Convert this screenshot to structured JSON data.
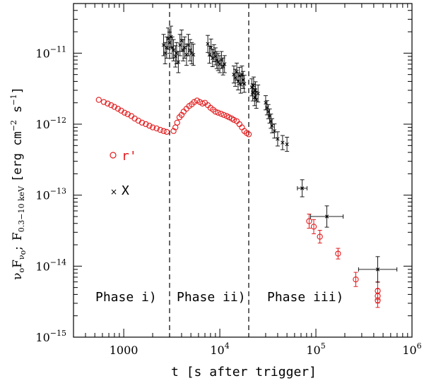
{
  "chart_data": {
    "type": "scatter",
    "xscale": "log",
    "yscale": "log",
    "xlim": [
      300,
      1000000
    ],
    "ylim": [
      1e-15,
      5e-11
    ],
    "xlabel": "t [s after trigger]",
    "ylabel_main": "ν",
    "ylabel": {
      "part1": "ν",
      "sub1": "o",
      "part2": "F",
      "sub2": "ν",
      "sub2b": "o",
      "sep": ";",
      "part3": "F",
      "sub3": "0.3−10 keV",
      "part4": "[erg cm",
      "exp1": "−2",
      "part5": " s",
      "exp2": "−1",
      "part6": "]"
    },
    "xticks": [
      {
        "base": "1000",
        "exp": ""
      },
      {
        "base": "10",
        "exp": "4"
      },
      {
        "base": "10",
        "exp": "5"
      },
      {
        "base": "10",
        "exp": "6"
      }
    ],
    "yticks": [
      {
        "base": "10",
        "exp": "−15"
      },
      {
        "base": "10",
        "exp": "−14"
      },
      {
        "base": "10",
        "exp": "−13"
      },
      {
        "base": "10",
        "exp": "−12"
      },
      {
        "base": "10",
        "exp": "−11"
      }
    ],
    "phase_boundaries": [
      3000,
      20000
    ],
    "phases": [
      "Phase i)",
      "Phase ii)",
      "Phase iii)"
    ],
    "legend": [
      {
        "name": "r'",
        "marker": "circle",
        "color": "#e31a1c"
      },
      {
        "name": "X",
        "marker": "cross",
        "color": "#000000"
      }
    ],
    "series": [
      {
        "name": "r'",
        "marker": "circle",
        "color": "#e31a1c",
        "points": [
          [
            550,
            2.2e-12
          ],
          [
            620,
            2.05e-12
          ],
          [
            680,
            1.95e-12
          ],
          [
            740,
            1.85e-12
          ],
          [
            800,
            1.75e-12
          ],
          [
            870,
            1.65e-12
          ],
          [
            940,
            1.55e-12
          ],
          [
            1020,
            1.45e-12
          ],
          [
            1100,
            1.38e-12
          ],
          [
            1200,
            1.3e-12
          ],
          [
            1300,
            1.2e-12
          ],
          [
            1420,
            1.12e-12
          ],
          [
            1550,
            1.05e-12
          ],
          [
            1700,
            1e-12
          ],
          [
            1850,
            9.5e-13
          ],
          [
            2000,
            9e-13
          ],
          [
            2200,
            8.7e-13
          ],
          [
            2400,
            8.3e-13
          ],
          [
            2600,
            8e-13
          ],
          [
            2800,
            7.8e-13
          ],
          [
            3300,
            8e-13
          ],
          [
            3450,
            9e-13
          ],
          [
            3600,
            1.05e-12
          ],
          [
            3800,
            1.25e-12
          ],
          [
            4000,
            1.35e-12
          ],
          [
            4200,
            1.5e-12
          ],
          [
            4500,
            1.65e-12
          ],
          [
            4800,
            1.8e-12
          ],
          [
            5100,
            1.9e-12
          ],
          [
            5400,
            2.05e-12
          ],
          [
            5800,
            2.15e-12
          ],
          [
            6200,
            2.05e-12
          ],
          [
            6600,
            1.95e-12
          ],
          [
            7000,
            2e-12
          ],
          [
            7500,
            1.85e-12
          ],
          [
            8000,
            1.7e-12
          ],
          [
            8500,
            1.6e-12
          ],
          [
            9000,
            1.5e-12
          ],
          [
            9600,
            1.45e-12
          ],
          [
            10300,
            1.4e-12
          ],
          [
            11000,
            1.35e-12
          ],
          [
            11800,
            1.3e-12
          ],
          [
            12500,
            1.25e-12
          ],
          [
            13300,
            1.2e-12
          ],
          [
            14000,
            1.15e-12
          ],
          [
            15000,
            1.1e-12
          ],
          [
            16000,
            1e-12
          ],
          [
            17000,
            9e-13
          ],
          [
            18000,
            8e-13
          ],
          [
            19000,
            7.5e-13
          ],
          [
            20000,
            7.2e-13
          ],
          [
            85000,
            4.3e-14
          ],
          [
            95000,
            3.6e-14
          ],
          [
            110000,
            2.6e-14
          ],
          [
            170000,
            1.5e-14
          ],
          [
            260000,
            6.5e-15
          ],
          [
            440000,
            4.5e-15
          ],
          [
            440000,
            3.8e-15
          ],
          [
            440000,
            3.3e-15
          ]
        ],
        "errors": [
          0,
          0,
          0,
          0,
          0,
          0,
          0,
          0,
          0,
          0,
          0,
          0,
          0,
          0,
          0,
          0,
          0,
          0,
          0,
          0,
          0,
          0,
          0,
          0,
          0,
          0,
          0,
          0,
          0,
          0,
          0,
          0,
          0,
          0,
          0,
          0,
          0,
          0,
          0,
          0,
          0,
          0,
          0,
          0,
          0,
          0,
          0,
          0,
          0,
          0,
          0,
          0.2,
          0.2,
          0.18,
          0.15,
          0.2,
          0.25,
          0.2,
          0.2
        ]
      },
      {
        "name": "X",
        "marker": "cross",
        "color": "#000000",
        "points": [
          [
            2600,
            1.3e-11
          ],
          [
            2700,
            1e-11
          ],
          [
            2800,
            1.2e-11
          ],
          [
            2900,
            1.6e-11
          ],
          [
            3000,
            1.4e-11
          ],
          [
            3100,
            1.7e-11
          ],
          [
            3200,
            1.2e-11
          ],
          [
            3300,
            1.1e-11
          ],
          [
            3450,
            9e-12
          ],
          [
            3550,
            1e-11
          ],
          [
            3700,
            7.5e-12
          ],
          [
            3850,
            1.3e-11
          ],
          [
            4000,
            1.5e-11
          ],
          [
            4150,
            1.1e-11
          ],
          [
            4300,
            1.2e-11
          ],
          [
            4500,
            9.5e-12
          ],
          [
            4700,
            1.3e-11
          ],
          [
            4900,
            1.1e-11
          ],
          [
            5100,
            1e-11
          ],
          [
            5300,
            9.5e-12
          ],
          [
            7500,
            1.35e-11
          ],
          [
            7800,
            9.5e-12
          ],
          [
            8100,
            1.2e-11
          ],
          [
            8400,
            8.5e-12
          ],
          [
            8700,
            1e-11
          ],
          [
            9000,
            9e-12
          ],
          [
            9300,
            8e-12
          ],
          [
            9600,
            7.5e-12
          ],
          [
            10000,
            7e-12
          ],
          [
            10400,
            8e-12
          ],
          [
            10800,
            6.5e-12
          ],
          [
            11200,
            7e-12
          ],
          [
            14000,
            5e-12
          ],
          [
            14500,
            4.5e-12
          ],
          [
            15000,
            5.5e-12
          ],
          [
            15500,
            4e-12
          ],
          [
            16000,
            4.8e-12
          ],
          [
            16500,
            3.6e-12
          ],
          [
            17000,
            5e-12
          ],
          [
            17500,
            4.2e-12
          ],
          [
            18000,
            3.7e-12
          ],
          [
            21500,
            3.3e-12
          ],
          [
            22000,
            2.8e-12
          ],
          [
            22500,
            3.5e-12
          ],
          [
            23000,
            2.4e-12
          ],
          [
            23500,
            3e-12
          ],
          [
            24000,
            2.2e-12
          ],
          [
            25000,
            2.7e-12
          ],
          [
            30000,
            2e-12
          ],
          [
            31000,
            1.7e-12
          ],
          [
            32000,
            1.5e-12
          ],
          [
            33000,
            1.3e-12
          ],
          [
            34000,
            1.1e-12
          ],
          [
            35000,
            9.5e-13
          ],
          [
            37000,
            8e-13
          ],
          [
            40000,
            6.2e-13
          ],
          [
            45000,
            5.5e-13
          ],
          [
            50000,
            5.2e-13
          ],
          [
            72000,
            1.25e-13
          ],
          [
            130000,
            5e-14
          ],
          [
            440000,
            9e-15
          ]
        ],
        "yerrors": [
          0.15,
          0.15,
          0.15,
          0.15,
          0.15,
          0.15,
          0.15,
          0.15,
          0.15,
          0.15,
          0.15,
          0.15,
          0.15,
          0.15,
          0.15,
          0.15,
          0.15,
          0.15,
          0.15,
          0.15,
          0.12,
          0.12,
          0.12,
          0.12,
          0.12,
          0.12,
          0.12,
          0.12,
          0.12,
          0.12,
          0.12,
          0.12,
          0.12,
          0.12,
          0.12,
          0.12,
          0.12,
          0.12,
          0.12,
          0.12,
          0.12,
          0.12,
          0.12,
          0.12,
          0.12,
          0.12,
          0.12,
          0.12,
          0.1,
          0.1,
          0.1,
          0.1,
          0.1,
          0.1,
          0.1,
          0.1,
          0.1,
          0.1,
          0.12,
          0.15,
          0.18
        ],
        "xerrors": [
          0,
          0,
          0,
          0,
          0,
          0,
          0,
          0,
          0,
          0,
          0,
          0,
          0,
          0,
          0,
          0,
          0,
          0,
          0,
          0,
          0,
          0,
          0,
          0,
          0,
          0,
          0,
          0,
          0,
          0,
          0,
          0,
          0,
          0,
          0,
          0,
          0,
          0,
          0,
          0,
          0,
          0,
          0,
          0,
          0,
          0,
          0,
          0,
          0,
          0,
          0,
          0,
          0,
          0,
          0,
          0,
          0,
          0,
          0.05,
          0.17,
          0.2
        ]
      }
    ]
  }
}
